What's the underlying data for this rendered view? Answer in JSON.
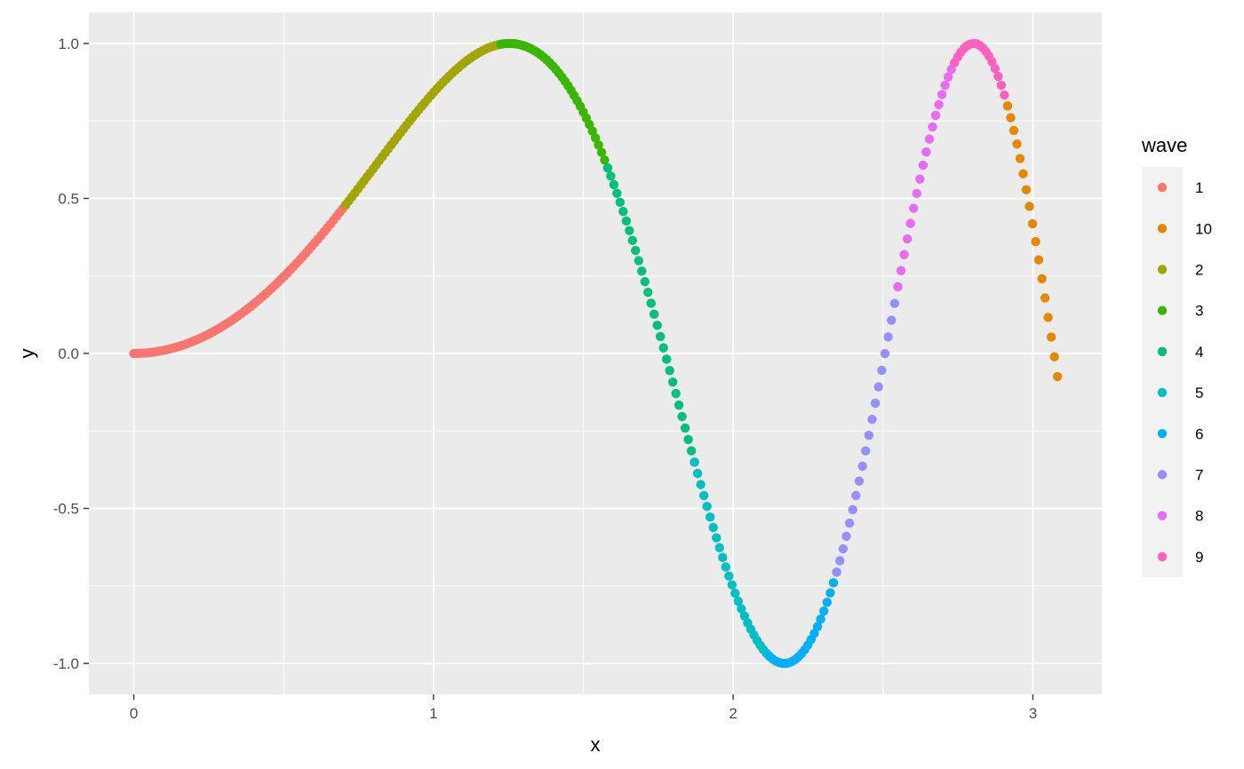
{
  "chart_data": {
    "type": "scatter",
    "title": "",
    "xlabel": "x",
    "ylabel": "y",
    "xlim": [
      -0.15,
      3.23
    ],
    "ylim": [
      -1.1,
      1.1
    ],
    "x_ticks": [
      0,
      1,
      2,
      3
    ],
    "x_tick_labels": [
      "0",
      "1",
      "2",
      "3"
    ],
    "y_ticks": [
      -1.0,
      -0.5,
      0.0,
      0.5,
      1.0
    ],
    "y_tick_labels": [
      "-1.0",
      "-0.5",
      "0.0",
      "0.5",
      "1.0"
    ],
    "grid": true,
    "legend": {
      "title": "wave",
      "position": "right",
      "entries": [
        "1",
        "10",
        "2",
        "3",
        "4",
        "5",
        "6",
        "7",
        "8",
        "9"
      ]
    },
    "function": "y = sin(x^2)",
    "series": [
      {
        "name": "1",
        "color": "#F8766D",
        "x_range": [
          0.0,
          0.7071
        ],
        "n_points": 70
      },
      {
        "name": "2",
        "color": "#A3A500",
        "x_range": [
          0.7071,
          1.2247
        ],
        "n_points": 52
      },
      {
        "name": "3",
        "color": "#39B600",
        "x_range": [
          1.2247,
          1.5811
        ],
        "n_points": 36
      },
      {
        "name": "4",
        "color": "#00BF7D",
        "x_range": [
          1.5811,
          1.8708
        ],
        "n_points": 29
      },
      {
        "name": "5",
        "color": "#00BFC4",
        "x_range": [
          1.8708,
          2.1213
        ],
        "n_points": 25
      },
      {
        "name": "6",
        "color": "#00B0F6",
        "x_range": [
          2.1213,
          2.3452
        ],
        "n_points": 22
      },
      {
        "name": "7",
        "color": "#9590FF",
        "x_range": [
          2.3452,
          2.5495
        ],
        "n_points": 20
      },
      {
        "name": "8",
        "color": "#E76BF3",
        "x_range": [
          2.5495,
          2.7386
        ],
        "n_points": 19
      },
      {
        "name": "9",
        "color": "#FF62BC",
        "x_range": [
          2.7386,
          2.9155
        ],
        "n_points": 18
      },
      {
        "name": "10",
        "color": "#E58700",
        "x_range": [
          2.9155,
          3.0822
        ],
        "n_points": 17
      }
    ]
  }
}
